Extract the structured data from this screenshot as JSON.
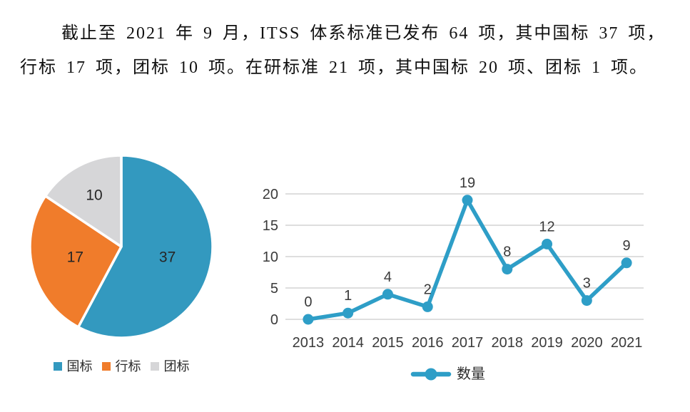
{
  "paragraph": {
    "line1": "截止至 2021 年 9 月，ITSS 体系标准已发布 64 项，其中国标 37 项，",
    "line2": "行标 17 项，团标 10 项。在研标准 21 项，其中国标 20 项、团标 1 项。"
  },
  "chart_data": [
    {
      "type": "pie",
      "title": "",
      "labels": [
        "国标",
        "行标",
        "团标"
      ],
      "values": [
        37,
        17,
        10
      ],
      "colors": [
        "#3399BF",
        "#F07C2B",
        "#D6D6D8"
      ],
      "slice_label_color": "#262626",
      "separator_color": "#ffffff",
      "start_angle": "top",
      "direction": "clockwise",
      "legend_position": "bottom"
    },
    {
      "type": "line",
      "title": "",
      "categories": [
        "2013",
        "2014",
        "2015",
        "2016",
        "2017",
        "2018",
        "2019",
        "2020",
        "2021"
      ],
      "series": [
        {
          "name": "数量",
          "values": [
            0,
            1,
            4,
            2,
            19,
            8,
            12,
            3,
            9
          ],
          "color": "#2E9EC7"
        }
      ],
      "ylim": [
        0,
        20
      ],
      "yticks": [
        0,
        5,
        10,
        15,
        20
      ],
      "grid": "horizontal",
      "grid_color": "#C9C9C9",
      "text_color": "#3A3A3A",
      "data_labels": true,
      "legend_position": "bottom"
    }
  ]
}
